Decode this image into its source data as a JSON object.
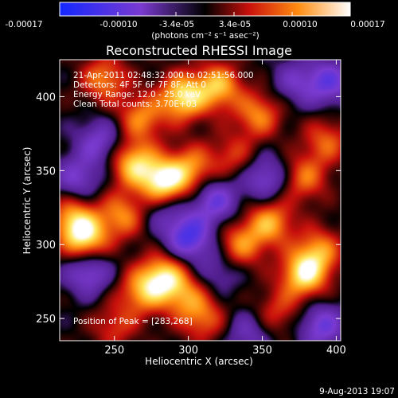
{
  "chart_data": {
    "type": "heatmap",
    "title": "Reconstructed RHESSI Image",
    "xlabel": "Heliocentric X (arcsec)",
    "ylabel": "Heliocentric Y (arcsec)",
    "xlim": [
      213,
      403
    ],
    "ylim": [
      235,
      425
    ],
    "xticks": [
      250,
      300,
      350,
      400
    ],
    "yticks": [
      250,
      300,
      350,
      400
    ],
    "colorbar": {
      "range": [
        -0.00017,
        0.00017
      ],
      "ticks": [
        "-0.00017",
        "-0.00010",
        "-3.4e-05",
        "3.4e-05",
        "0.00010",
        "0.00017"
      ],
      "units_label": "(photons cm⁻² s⁻¹ asec⁻²)"
    },
    "annotations": {
      "time": "21-Apr-2011 02:48:32.000 to 02:51:56.000",
      "detectors": "Detectors: 4F 5F 6F 7F 8F, Att 0",
      "energy": "Energy Range: 12.0 - 25.0 keV",
      "clean": "Clean    Total counts: 3.70E+03",
      "peak": "Position of Peak = [283,268]"
    },
    "footer_date": "9-Aug-2013 19:07",
    "blobs": [
      {
        "x": 283,
        "y": 342,
        "amp": 1.0
      },
      {
        "x": 263,
        "y": 355,
        "amp": 0.75
      },
      {
        "x": 302,
        "y": 352,
        "amp": 0.55
      },
      {
        "x": 296,
        "y": 400,
        "amp": 0.85
      },
      {
        "x": 320,
        "y": 407,
        "amp": 0.7
      },
      {
        "x": 268,
        "y": 386,
        "amp": 0.55
      },
      {
        "x": 243,
        "y": 412,
        "amp": 0.55
      },
      {
        "x": 347,
        "y": 388,
        "amp": 0.55
      },
      {
        "x": 230,
        "y": 304,
        "amp": 0.8
      },
      {
        "x": 222,
        "y": 318,
        "amp": 0.6
      },
      {
        "x": 255,
        "y": 320,
        "amp": 0.55
      },
      {
        "x": 283,
        "y": 278,
        "amp": 0.8
      },
      {
        "x": 268,
        "y": 268,
        "amp": 0.55
      },
      {
        "x": 298,
        "y": 265,
        "amp": 0.45
      },
      {
        "x": 378,
        "y": 280,
        "amp": 0.85
      },
      {
        "x": 388,
        "y": 296,
        "amp": 0.55
      },
      {
        "x": 355,
        "y": 315,
        "amp": 0.65
      },
      {
        "x": 335,
        "y": 300,
        "amp": 0.55
      },
      {
        "x": 378,
        "y": 345,
        "amp": 0.5
      },
      {
        "x": 393,
        "y": 370,
        "amp": 0.45
      },
      {
        "x": 310,
        "y": 250,
        "amp": 0.45
      },
      {
        "x": 360,
        "y": 255,
        "amp": 0.35
      },
      {
        "x": 250,
        "y": 245,
        "amp": 0.35
      },
      {
        "x": 330,
        "y": 360,
        "amp": 0.35
      },
      {
        "x": 283,
        "y": 325,
        "amp": -0.35
      },
      {
        "x": 240,
        "y": 370,
        "amp": -0.45
      },
      {
        "x": 300,
        "y": 305,
        "amp": -0.7
      },
      {
        "x": 318,
        "y": 330,
        "amp": -0.55
      },
      {
        "x": 352,
        "y": 345,
        "amp": -0.5
      },
      {
        "x": 395,
        "y": 410,
        "amp": -0.55
      },
      {
        "x": 372,
        "y": 410,
        "amp": -0.35
      },
      {
        "x": 232,
        "y": 282,
        "amp": -0.55
      },
      {
        "x": 225,
        "y": 345,
        "amp": -0.45
      },
      {
        "x": 390,
        "y": 245,
        "amp": -0.55
      },
      {
        "x": 340,
        "y": 240,
        "amp": -0.35
      },
      {
        "x": 320,
        "y": 282,
        "amp": -0.3
      }
    ]
  }
}
